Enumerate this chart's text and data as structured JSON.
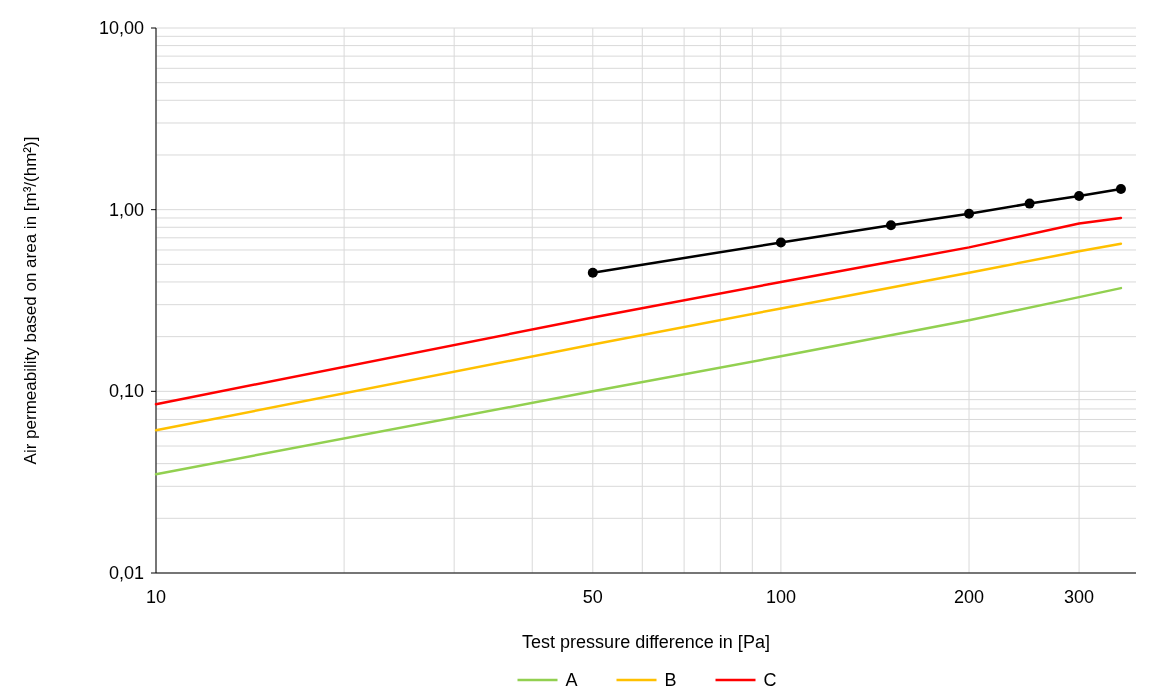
{
  "chart_data": {
    "type": "line",
    "xlabel": "Test pressure difference in [Pa]",
    "ylabel": "Air permeability based on area in [m³/(hm²)]",
    "log": "xy",
    "grid": true,
    "legend": "bottom",
    "line_style": "solid",
    "xlim": [
      10,
      370
    ],
    "xticks": [
      10,
      50,
      100,
      200,
      300
    ],
    "ylim": [
      0.01,
      10
    ],
    "yticks": [
      {
        "value": 0.01,
        "label": "0,01"
      },
      {
        "value": 0.1,
        "label": "0,10"
      },
      {
        "value": 1,
        "label": "1,00"
      },
      {
        "value": 10,
        "label": "10,00"
      }
    ],
    "series": [
      {
        "color": "#000000",
        "marker": "circle",
        "x": [
          50,
          100,
          150,
          200,
          250,
          300,
          350
        ],
        "values": [
          0.45,
          0.66,
          0.82,
          0.95,
          1.08,
          1.19,
          1.3
        ]
      },
      {
        "name": "A",
        "color": "#92d050",
        "marker": "none",
        "x": [
          10,
          50,
          100,
          200,
          300,
          350
        ],
        "values": [
          0.035,
          0.1,
          0.156,
          0.246,
          0.33,
          0.37
        ]
      },
      {
        "name": "B",
        "color": "#ffc000",
        "marker": "none",
        "x": [
          10,
          50,
          100,
          200,
          300,
          350
        ],
        "values": [
          0.061,
          0.181,
          0.286,
          0.45,
          0.59,
          0.65
        ]
      },
      {
        "name": "C",
        "color": "#ff0000",
        "marker": "none",
        "x": [
          10,
          50,
          100,
          200,
          300,
          350
        ],
        "values": [
          0.085,
          0.255,
          0.4,
          0.62,
          0.84,
          0.9
        ]
      }
    ]
  }
}
